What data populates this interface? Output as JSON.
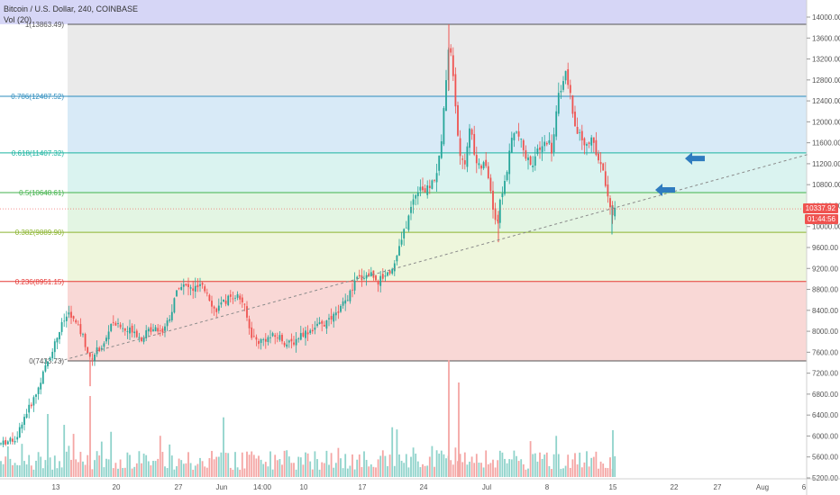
{
  "header": {
    "symbol_line": "Bitcoin / U.S. Dollar, 240, COINBASE",
    "indicator": "Vol (20)"
  },
  "price_tags": {
    "last_price": "10337.92",
    "countdown": "01:44:56"
  },
  "colors": {
    "up": "#26a69a",
    "down": "#ef5350",
    "vol_up": "#8fd3cb",
    "vol_down": "#f4a6a4",
    "trendline": "#8a8a8a",
    "arrow": "#2f7bbf"
  },
  "chart_data": {
    "type": "candlestick",
    "y_axis": {
      "ticks": [
        "5200.00",
        "5600.00",
        "6000.00",
        "6400.00",
        "6800.00",
        "7200.00",
        "7600.00",
        "8000.00",
        "8400.00",
        "8800.00",
        "9200.00",
        "9600.00",
        "10000.00",
        "10400.00",
        "10800.00",
        "11200.00",
        "11600.00",
        "12000.00",
        "12400.00",
        "12800.00",
        "13200.00",
        "13600.00",
        "14000.00"
      ],
      "range": [
        5150,
        14150
      ]
    },
    "x_axis": {
      "ticks": [
        "13",
        "20",
        "27",
        "Jun",
        "14:00",
        "10",
        "17",
        "24",
        "Jul",
        "8",
        "15",
        "22",
        "27",
        "Aug",
        "6"
      ]
    },
    "fib_levels": [
      {
        "ratio": 1,
        "label": "1(13863.49)",
        "price": 13863.49,
        "line": "#555555",
        "fill": "#e8e8e8"
      },
      {
        "ratio": 0.786,
        "label": "0.786(12487.52)",
        "price": 12487.52,
        "line": "#2c8cbe",
        "fill": "#d4e8f6"
      },
      {
        "ratio": 0.618,
        "label": "0.618(11407.32)",
        "price": 11407.32,
        "line": "#1bb3a0",
        "fill": "#d6f2ee"
      },
      {
        "ratio": 0.5,
        "label": "0.5(10648.61)",
        "price": 10648.61,
        "line": "#43b24c",
        "fill": "#e0f4e0"
      },
      {
        "ratio": 0.382,
        "label": "0.382(9889.90)",
        "price": 9889.9,
        "line": "#8bb430",
        "fill": "#ecf5d8"
      },
      {
        "ratio": 0.236,
        "label": "0.236(8951.15)",
        "price": 8951.15,
        "line": "#e53935",
        "fill": "#f8d4d2"
      },
      {
        "ratio": 0,
        "label": "0(7433.73)",
        "price": 7433.73,
        "line": "#555555",
        "fill": null
      }
    ],
    "top_band_fill": "#d6d6f6",
    "close_path": [
      [
        0,
        5850
      ],
      [
        18,
        5950
      ],
      [
        25,
        6300
      ],
      [
        40,
        6800
      ],
      [
        48,
        7200
      ],
      [
        58,
        7650
      ],
      [
        68,
        8100
      ],
      [
        76,
        8350
      ],
      [
        84,
        8150
      ],
      [
        92,
        7900
      ],
      [
        100,
        7450
      ],
      [
        108,
        7650
      ],
      [
        116,
        7750
      ],
      [
        124,
        8200
      ],
      [
        132,
        8100
      ],
      [
        140,
        8000
      ],
      [
        148,
        8050
      ],
      [
        156,
        7850
      ],
      [
        164,
        8000
      ],
      [
        172,
        8100
      ],
      [
        180,
        8000
      ],
      [
        190,
        8350
      ],
      [
        198,
        8900
      ],
      [
        206,
        8850
      ],
      [
        214,
        8800
      ],
      [
        222,
        8850
      ],
      [
        230,
        8750
      ],
      [
        238,
        8400
      ],
      [
        246,
        8500
      ],
      [
        254,
        8650
      ],
      [
        262,
        8700
      ],
      [
        270,
        8550
      ],
      [
        278,
        7950
      ],
      [
        286,
        7800
      ],
      [
        294,
        7850
      ],
      [
        302,
        7900
      ],
      [
        310,
        7900
      ],
      [
        318,
        7750
      ],
      [
        326,
        7800
      ],
      [
        334,
        7950
      ],
      [
        342,
        8000
      ],
      [
        352,
        8100
      ],
      [
        362,
        8150
      ],
      [
        372,
        8300
      ],
      [
        380,
        8500
      ],
      [
        388,
        8700
      ],
      [
        396,
        9000
      ],
      [
        404,
        9050
      ],
      [
        412,
        9100
      ],
      [
        420,
        8950
      ],
      [
        428,
        9100
      ],
      [
        436,
        9200
      ],
      [
        444,
        9650
      ],
      [
        452,
        10100
      ],
      [
        460,
        10600
      ],
      [
        466,
        10800
      ],
      [
        472,
        10650
      ],
      [
        478,
        10800
      ],
      [
        484,
        11000
      ],
      [
        490,
        11600
      ],
      [
        494,
        12600
      ],
      [
        497,
        13350
      ],
      [
        499,
        13600
      ],
      [
        503,
        12800
      ],
      [
        507,
        11900
      ],
      [
        511,
        11300
      ],
      [
        515,
        11100
      ],
      [
        519,
        11700
      ],
      [
        523,
        11900
      ],
      [
        527,
        11300
      ],
      [
        532,
        11100
      ],
      [
        538,
        11200
      ],
      [
        544,
        10800
      ],
      [
        548,
        10200
      ],
      [
        552,
        10100
      ],
      [
        556,
        10600
      ],
      [
        562,
        11000
      ],
      [
        568,
        11700
      ],
      [
        574,
        11800
      ],
      [
        578,
        11600
      ],
      [
        584,
        11300
      ],
      [
        590,
        11200
      ],
      [
        596,
        11400
      ],
      [
        602,
        11500
      ],
      [
        608,
        11700
      ],
      [
        612,
        11400
      ],
      [
        616,
        12000
      ],
      [
        620,
        12500
      ],
      [
        624,
        12800
      ],
      [
        628,
        12900
      ],
      [
        632,
        12600
      ],
      [
        636,
        12000
      ],
      [
        640,
        11800
      ],
      [
        644,
        11700
      ],
      [
        648,
        11600
      ],
      [
        652,
        11500
      ],
      [
        656,
        11800
      ],
      [
        660,
        11400
      ],
      [
        664,
        11300
      ],
      [
        668,
        11100
      ],
      [
        672,
        10800
      ],
      [
        676,
        10500
      ],
      [
        680,
        10250
      ],
      [
        683,
        10337.92
      ]
    ],
    "visible_candle_x_range": [
      0,
      683
    ],
    "trendline": {
      "from": {
        "x": 60,
        "price": 7400
      },
      "to": {
        "x": 897,
        "price": 11380
      },
      "style": "dashed"
    },
    "annotations": [
      {
        "type": "arrow-left",
        "x": 770,
        "price": 11300
      },
      {
        "type": "arrow-left",
        "x": 737,
        "price": 10700
      }
    ],
    "volume_note": "Vol (20)"
  }
}
